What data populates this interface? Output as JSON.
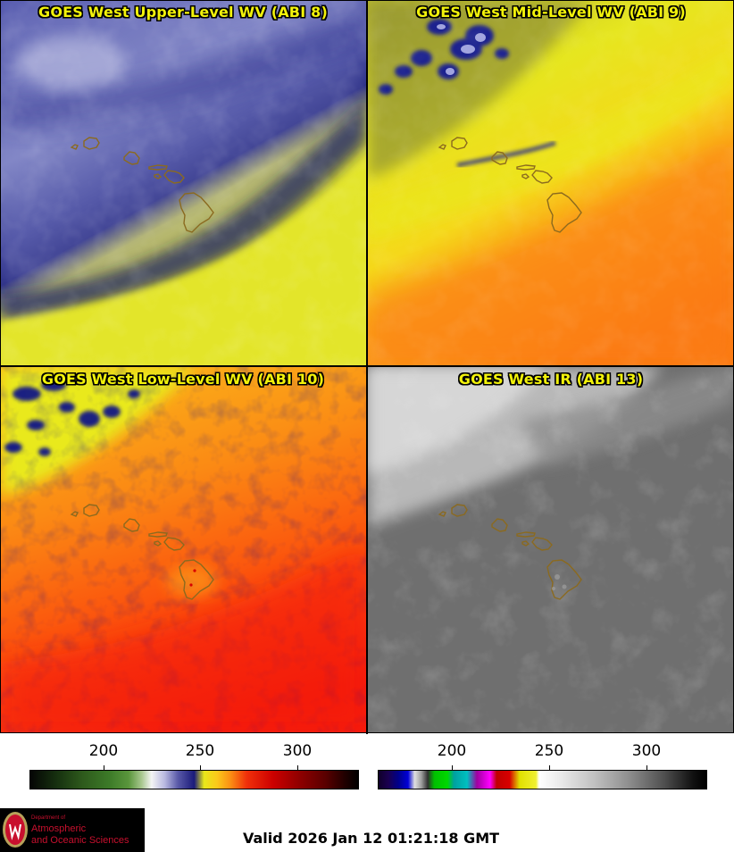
{
  "panels": [
    {
      "title": "GOES West Upper-Level WV (ABI 8)"
    },
    {
      "title": "GOES West Mid-Level WV (ABI 9)"
    },
    {
      "title": "GOES West Low-Level WV (ABI 10)"
    },
    {
      "title": "GOES West IR (ABI 13)"
    }
  ],
  "colorbars": {
    "wv": {
      "ticks": [
        "200",
        "250",
        "300"
      ]
    },
    "ir": {
      "ticks": [
        "200",
        "250",
        "300"
      ]
    }
  },
  "logo": {
    "dept_line": "Department of",
    "name_line1": "Atmospheric",
    "name_line2": "and Oceanic Sciences"
  },
  "valid_time": "Valid 2026 Jan 12 01:21:18 GMT",
  "colors": {
    "title_text": "#f2f20a",
    "coastline": "#8b6a1f"
  }
}
